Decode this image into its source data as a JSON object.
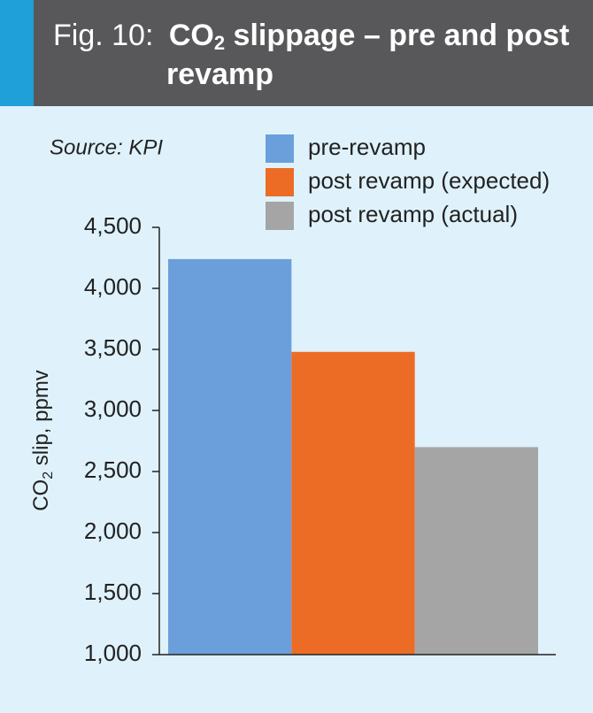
{
  "chart_data": {
    "type": "bar",
    "title": {
      "prefix": "Fig. 10:",
      "parts": [
        "CO",
        "2",
        " slippage – pre and post revamp"
      ]
    },
    "source": "Source: KPI",
    "y_label": [
      "CO",
      "2",
      " slip, ppmv"
    ],
    "categories": [
      null
    ],
    "series": [
      {
        "name": "pre-revamp",
        "color": "#6a9fdc",
        "values": [
          4240
        ]
      },
      {
        "name": "post revamp (expected)",
        "color": "#ec6c26",
        "values": [
          3480
        ]
      },
      {
        "name": "post revamp (actual)",
        "color": "#a5a5a5",
        "values": [
          2700
        ]
      }
    ],
    "ylim": [
      1000,
      4500
    ],
    "yticks": [
      {
        "value": 1000,
        "label": "1,000"
      },
      {
        "value": 1500,
        "label": "1,500"
      },
      {
        "value": 2000,
        "label": "2,000"
      },
      {
        "value": 2500,
        "label": "2,500"
      },
      {
        "value": 3000,
        "label": "3,000"
      },
      {
        "value": 3500,
        "label": "3,500"
      },
      {
        "value": 4000,
        "label": "4,000"
      },
      {
        "value": 4500,
        "label": "4,500"
      }
    ],
    "legend": "top-right",
    "grid": false
  }
}
